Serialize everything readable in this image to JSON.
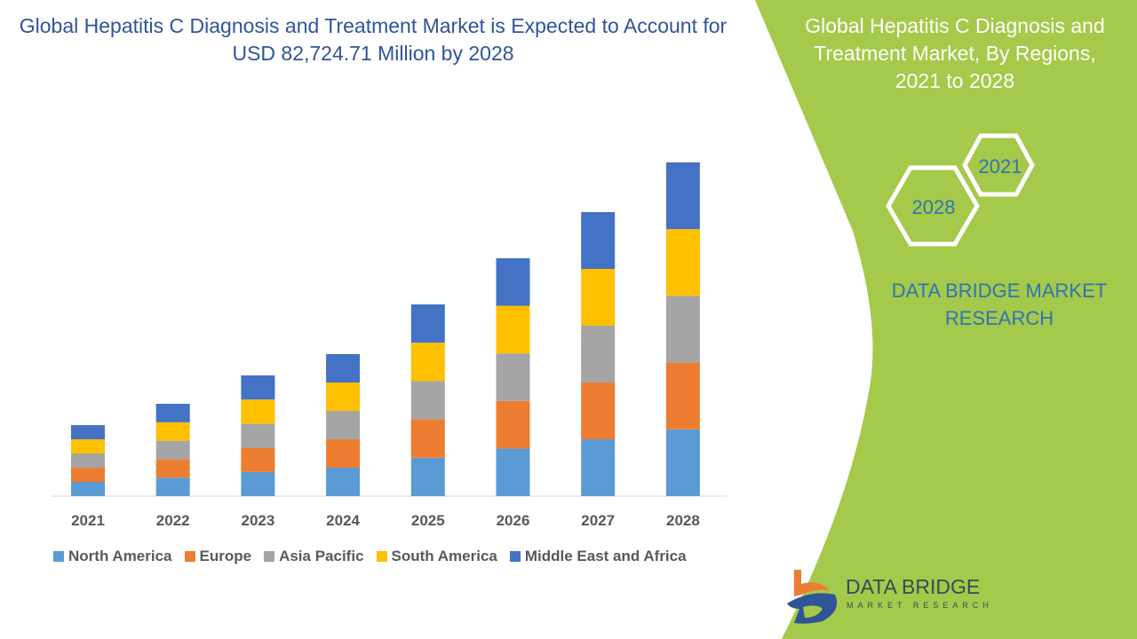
{
  "title": "Global Hepatitis C Diagnosis and Treatment Market is Expected to Account for USD 82,724.71 Million by 2028",
  "side_panel": {
    "title": "Global Hepatitis C Diagnosis and Treatment Market, By Regions, 2021 to 2028",
    "hex_labels": [
      "2021",
      "2028"
    ],
    "brand_text": "DATA BRIDGE MARKET RESEARCH",
    "accent_color": "#A5C94A"
  },
  "logo": {
    "line1": "DATA BRIDGE",
    "line2": "MARKET RESEARCH"
  },
  "chart_data": {
    "type": "bar",
    "stacked": true,
    "categories": [
      "2021",
      "2022",
      "2023",
      "2024",
      "2025",
      "2026",
      "2027",
      "2028"
    ],
    "series": [
      {
        "name": "North America",
        "color": "#5B9BD5",
        "values": [
          1.0,
          1.3,
          1.7,
          2.0,
          2.7,
          3.35,
          4.0,
          4.7
        ]
      },
      {
        "name": "Europe",
        "color": "#ED7D31",
        "values": [
          1.0,
          1.3,
          1.7,
          2.0,
          2.7,
          3.35,
          4.0,
          4.7
        ]
      },
      {
        "name": "Asia Pacific",
        "color": "#A5A5A5",
        "values": [
          1.0,
          1.3,
          1.7,
          2.0,
          2.7,
          3.35,
          4.0,
          4.7
        ]
      },
      {
        "name": "South America",
        "color": "#FFC000",
        "values": [
          1.0,
          1.3,
          1.7,
          2.0,
          2.7,
          3.35,
          4.0,
          4.7
        ]
      },
      {
        "name": "Middle East and Africa",
        "color": "#4472C4",
        "values": [
          1.0,
          1.3,
          1.7,
          2.0,
          2.7,
          3.35,
          4.0,
          4.7
        ]
      }
    ],
    "value_note": "relative values estimated (no axis printed)",
    "legend_position": "bottom",
    "grid": false
  }
}
